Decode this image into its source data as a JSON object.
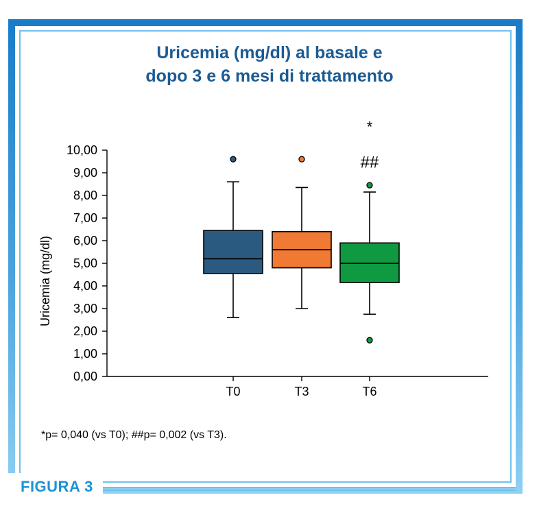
{
  "figure": {
    "label": "FIGURA 3",
    "footnote": "*p= 0,040 (vs T0); ##p= 0,002 (vs T3)."
  },
  "colors": {
    "frame": "#1a7cc8",
    "title": "#1c5b93",
    "label": "#1c93d6"
  },
  "chart_data": {
    "type": "box",
    "title_lines": [
      "Uricemia (mg/dl) al basale e",
      "dopo 3 e 6 mesi di trattamento"
    ],
    "ylabel": "Uricemia (mg/dl)",
    "xlabel": "",
    "ylim": [
      0,
      10
    ],
    "yticks": [
      "0,00",
      "1,00",
      "2,00",
      "3,00",
      "4,00",
      "5,00",
      "6,00",
      "7,00",
      "8,00",
      "9,00",
      "10,00"
    ],
    "categories": [
      "T0",
      "T3",
      "T6"
    ],
    "grid": false,
    "legend": "none",
    "boxes": [
      {
        "category": "T0",
        "color": "#2b5a80",
        "whisker_low": 2.6,
        "q1": 4.55,
        "median": 5.2,
        "q3": 6.45,
        "whisker_high": 8.6,
        "outliers": [
          9.6
        ]
      },
      {
        "category": "T3",
        "color": "#f07a34",
        "whisker_low": 3.0,
        "q1": 4.8,
        "median": 5.6,
        "q3": 6.4,
        "whisker_high": 8.35,
        "outliers": [
          9.6
        ]
      },
      {
        "category": "T6",
        "color": "#0f9a41",
        "whisker_low": 2.75,
        "q1": 4.15,
        "median": 5.0,
        "q3": 5.9,
        "whisker_high": 8.15,
        "outliers": [
          8.45,
          1.6
        ]
      }
    ],
    "annotations": [
      {
        "category": "T6",
        "text": "*",
        "y": 11.1
      },
      {
        "category": "T6",
        "text": "##",
        "y": 9.5
      }
    ]
  }
}
